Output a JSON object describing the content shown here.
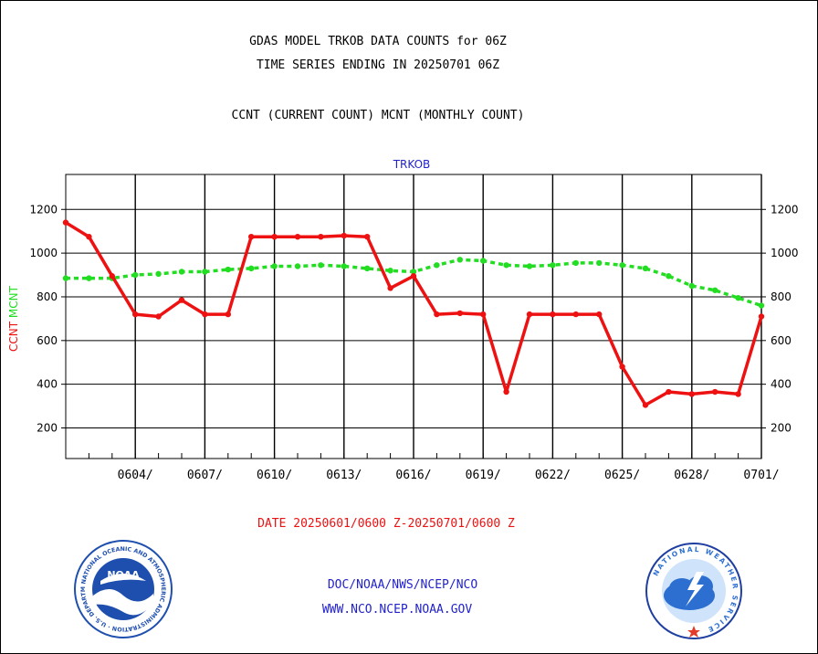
{
  "header": {
    "title_line1": "GDAS MODEL TRKOB DATA COUNTS for 06Z",
    "title_line2": "TIME SERIES ENDING IN 20250701 06Z",
    "subtitle": "CCNT (CURRENT COUNT) MCNT (MONTHLY COUNT)"
  },
  "footer": {
    "date_range": "DATE 20250601/0600 Z-20250701/0600 Z",
    "credit_line1": "DOC/NOAA/NWS/NCEP/NCO",
    "credit_line2": "WWW.NCO.NCEP.NOAA.GOV"
  },
  "logos": {
    "noaa_text": "NOAA",
    "noaa_ring_text": "NATIONAL OCEANIC AND ATMOSPHERIC ADMINISTRATION · U.S. DEPARTMENT OF COMMERCE",
    "nws_ring_text": "NATIONAL WEATHER SERVICE"
  },
  "colors": {
    "ccnt": "#ee1111",
    "mcnt": "#22dd22",
    "plot_title": "#2222cc",
    "date_text": "#ee1111",
    "credit_text": "#2222cc",
    "noaa_blue": "#1f4fae",
    "nws_blue": "#2d6fd0"
  },
  "chart_data": {
    "type": "line",
    "title": "TRKOB",
    "ylabel_series": [
      "CCNT",
      "MCNT"
    ],
    "xlim": [
      "2025-06-01",
      "2025-07-01"
    ],
    "ylim": [
      60,
      1360
    ],
    "yticks": [
      200,
      400,
      600,
      800,
      1000,
      1200
    ],
    "xtick_dates": [
      "2025-06-04",
      "2025-06-07",
      "2025-06-10",
      "2025-06-13",
      "2025-06-16",
      "2025-06-19",
      "2025-06-22",
      "2025-06-25",
      "2025-06-28",
      "2025-07-01"
    ],
    "xtick_labels": [
      "0604/",
      "0607/",
      "0610/",
      "0613/",
      "0616/",
      "0619/",
      "0622/",
      "0625/",
      "0628/",
      "0701/"
    ],
    "grid": true,
    "x": [
      "2025-06-01",
      "2025-06-02",
      "2025-06-03",
      "2025-06-04",
      "2025-06-05",
      "2025-06-06",
      "2025-06-07",
      "2025-06-08",
      "2025-06-09",
      "2025-06-10",
      "2025-06-11",
      "2025-06-12",
      "2025-06-13",
      "2025-06-14",
      "2025-06-15",
      "2025-06-16",
      "2025-06-17",
      "2025-06-18",
      "2025-06-19",
      "2025-06-20",
      "2025-06-21",
      "2025-06-22",
      "2025-06-23",
      "2025-06-24",
      "2025-06-25",
      "2025-06-26",
      "2025-06-27",
      "2025-06-28",
      "2025-06-29",
      "2025-06-30",
      "2025-07-01"
    ],
    "series": [
      {
        "name": "CCNT",
        "color": "#ee1111",
        "style": "solid",
        "values": [
          1140,
          1075,
          895,
          720,
          710,
          785,
          720,
          720,
          1075,
          1075,
          1075,
          1075,
          1080,
          1075,
          840,
          895,
          720,
          725,
          720,
          365,
          720,
          720,
          720,
          720,
          480,
          305,
          365,
          355,
          365,
          355,
          710
        ]
      },
      {
        "name": "MCNT",
        "color": "#22dd22",
        "style": "dashed",
        "values": [
          885,
          885,
          885,
          900,
          905,
          915,
          915,
          925,
          930,
          940,
          940,
          945,
          940,
          930,
          920,
          915,
          945,
          970,
          965,
          945,
          940,
          945,
          955,
          955,
          945,
          930,
          895,
          850,
          830,
          795,
          760
        ]
      }
    ]
  }
}
